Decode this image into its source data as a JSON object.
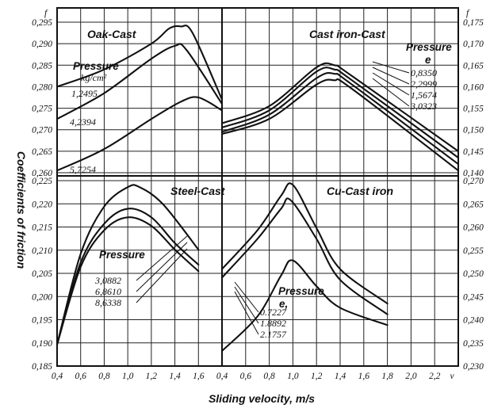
{
  "chart_data": [
    {
      "type": "line",
      "title": "Oak-Cast",
      "axis_symbol": "f",
      "xlabel": "",
      "ylabel": "Coefficients of friction",
      "x_ticks": [
        "0,4",
        "0,6",
        "0,8",
        "1,0",
        "1,2",
        "1,4",
        "1,6"
      ],
      "y_ticks": [
        "0,295",
        "0,290",
        "0,285",
        "0,280",
        "0,275",
        "0,270",
        "0,265",
        "0,260"
      ],
      "ylim": [
        0.26,
        0.295
      ],
      "legend_title": "Pressure",
      "legend_unit": "kg/cm²",
      "series": [
        {
          "name": "1,2495",
          "x": [
            0.4,
            0.8,
            1.2,
            1.35,
            1.45,
            1.55,
            1.8
          ],
          "y": [
            0.28,
            0.284,
            0.29,
            0.2935,
            0.294,
            0.2925,
            0.277
          ]
        },
        {
          "name": "4,2394",
          "x": [
            0.4,
            0.8,
            1.2,
            1.4,
            1.5,
            1.8
          ],
          "y": [
            0.2725,
            0.2785,
            0.2865,
            0.2895,
            0.2885,
            0.276
          ]
        },
        {
          "name": "5,7254",
          "x": [
            0.4,
            0.8,
            1.2,
            1.45,
            1.6,
            1.8
          ],
          "y": [
            0.2605,
            0.2655,
            0.2725,
            0.2765,
            0.2775,
            0.2745
          ]
        }
      ]
    },
    {
      "type": "line",
      "title": "Cast iron-Cast",
      "axis_symbol": "f",
      "xlabel": "",
      "ylabel": "",
      "y_ticks": [
        "0,175",
        "0,170",
        "0,165",
        "0,160",
        "0,155",
        "0,150",
        "0,145",
        "0,140"
      ],
      "ylim": [
        0.14,
        0.175
      ],
      "legend_title": "Pressure",
      "series": [
        {
          "name": "0,8350",
          "x": [
            0.4,
            0.8,
            1.2,
            1.35,
            1.5,
            2.4
          ],
          "y": [
            0.1515,
            0.1555,
            0.1645,
            0.165,
            0.1625,
            0.145
          ]
        },
        {
          "name": "2,2999",
          "x": [
            0.4,
            0.8,
            1.2,
            1.35,
            1.5,
            2.4
          ],
          "y": [
            0.1505,
            0.1545,
            0.1635,
            0.164,
            0.1615,
            0.1435
          ]
        },
        {
          "name": "1,5674",
          "x": [
            0.4,
            0.8,
            1.2,
            1.35,
            1.5,
            2.4
          ],
          "y": [
            0.1495,
            0.1535,
            0.162,
            0.163,
            0.1605,
            0.142
          ]
        },
        {
          "name": "3,0323",
          "x": [
            0.4,
            0.8,
            1.2,
            1.35,
            1.5,
            2.4
          ],
          "y": [
            0.149,
            0.1525,
            0.1605,
            0.1615,
            0.1595,
            0.1405
          ]
        }
      ]
    },
    {
      "type": "line",
      "title": "Steel-Cast",
      "xlabel": "",
      "ylabel": "",
      "x_ticks": [
        "0,4",
        "0,6",
        "0,8",
        "1,0",
        "1,2",
        "1,4",
        "1,6"
      ],
      "y_ticks": [
        "0,225",
        "0,220",
        "0,215",
        "0,210",
        "0,205",
        "0,200",
        "0,195",
        "0,190",
        "0,185"
      ],
      "ylim": [
        0.185,
        0.228
      ],
      "legend_title": "Pressure",
      "series": [
        {
          "name": "3,0882",
          "x": [
            0.4,
            0.6,
            0.8,
            1.0,
            1.1,
            1.3,
            1.6
          ],
          "y": [
            0.19,
            0.211,
            0.222,
            0.2265,
            0.2265,
            0.2225,
            0.212
          ]
        },
        {
          "name": "6,8610",
          "x": [
            0.4,
            0.6,
            0.8,
            1.0,
            1.2,
            1.4,
            1.6
          ],
          "y": [
            0.19,
            0.209,
            0.218,
            0.2215,
            0.2195,
            0.2135,
            0.2085
          ]
        },
        {
          "name": "8,6338",
          "x": [
            0.4,
            0.6,
            0.8,
            1.0,
            1.2,
            1.4,
            1.6
          ],
          "y": [
            0.19,
            0.208,
            0.2165,
            0.2195,
            0.2175,
            0.212,
            0.207
          ]
        }
      ]
    },
    {
      "type": "line",
      "title": "Cu-Cast iron",
      "xlabel": "Sliding velocity, m/s",
      "ylabel": "",
      "x_ticks": [
        "0,4",
        "0,6",
        "0,8",
        "1,0",
        "1,2",
        "1,4",
        "1,6",
        "1,8",
        "2,0",
        "2,2",
        "v"
      ],
      "y_ticks": [
        "0,270",
        "0,265",
        "0,260",
        "0,255",
        "0,250",
        "0,245",
        "0,240",
        "0,235",
        "0,230"
      ],
      "ylim": [
        0.23,
        0.273
      ],
      "legend_title": "Pressure",
      "series": [
        {
          "name": "0.7227",
          "x": [
            0.4,
            0.7,
            0.9,
            1.0,
            1.2,
            1.4,
            1.8
          ],
          "y": [
            0.2525,
            0.2615,
            0.2695,
            0.272,
            0.262,
            0.2525,
            0.2445
          ]
        },
        {
          "name": "1.8892",
          "x": [
            0.4,
            0.7,
            0.9,
            0.98,
            1.2,
            1.4,
            1.8
          ],
          "y": [
            0.2505,
            0.2595,
            0.2665,
            0.2685,
            0.2595,
            0.25,
            0.242
          ]
        },
        {
          "name": "2.1757",
          "x": [
            0.4,
            0.7,
            0.9,
            1.0,
            1.2,
            1.4,
            1.8
          ],
          "y": [
            0.2335,
            0.2415,
            0.251,
            0.2545,
            0.2485,
            0.2435,
            0.2395
          ]
        }
      ]
    }
  ]
}
